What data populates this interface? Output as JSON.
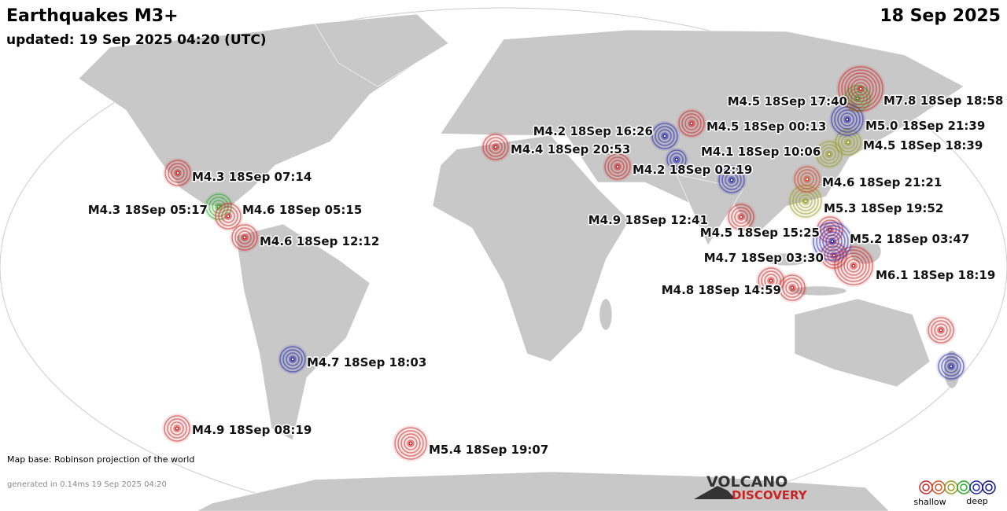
{
  "header": {
    "title": "Earthquakes M3+",
    "date": "18 Sep 2025",
    "updated": "updated: 19 Sep 2025 04:20 (UTC)"
  },
  "quakes": [
    {
      "label": "M4.3 18Sep 07:14",
      "color": "#cc2222"
    },
    {
      "label": "M4.3 18Sep 05:17",
      "color": "#22aa22"
    },
    {
      "label": "M4.6 18Sep 05:15",
      "color": "#cc2222"
    },
    {
      "label": "M4.6 18Sep 12:12",
      "color": "#cc2222"
    },
    {
      "label": "M4.7 18Sep 18:03",
      "color": "#2222aa"
    },
    {
      "label": "M4.9 18Sep 08:19",
      "color": "#cc2222"
    },
    {
      "label": "M5.4 18Sep 19:07",
      "color": "#cc2222"
    },
    {
      "label": "M4.4 18Sep 20:53",
      "color": "#cc2222"
    },
    {
      "label": "M4.2 18Sep 16:26",
      "color": "#2222aa"
    },
    {
      "label": "M4.5 18Sep 00:13",
      "color": "#cc2222"
    },
    {
      "label": "M4.1 18Sep 10:06",
      "color": "#2222aa"
    },
    {
      "label": "M4.2 18Sep 02:19",
      "color": "#cc2222"
    },
    {
      "label": "M4.9 18Sep 12:41",
      "color": "#cc2222"
    },
    {
      "label": "M4.5 18Sep 15:25",
      "color": "#cc2222"
    },
    {
      "label": "M4.7 18Sep 03:30",
      "color": "#cc2222"
    },
    {
      "label": "M4.8 18Sep 14:59",
      "color": "#cc2222"
    },
    {
      "label": "M6.1 18Sep 18:19",
      "color": "#cc2222"
    },
    {
      "label": "M5.2 18Sep 03:47",
      "color": "#2222aa"
    },
    {
      "label": "M5.3 18Sep 19:52",
      "color": "#999922"
    },
    {
      "label": "M4.6 18Sep 21:21",
      "color": "#cc4422"
    },
    {
      "label": "M4.5 18Sep 18:39",
      "color": "#999922"
    },
    {
      "label": "M5.0 18Sep 21:39",
      "color": "#2222aa"
    },
    {
      "label": "M4.5 18Sep 17:40",
      "color": "#22aa22"
    },
    {
      "label": "M7.8 18Sep 18:58",
      "color": "#cc2222"
    }
  ],
  "footer": {
    "map_base": "Map base: Robinson projection of the world",
    "generated": "generated in 0.14ms 19 Sep 2025 04:20"
  },
  "logo": {
    "line1": "VOLCANO",
    "line2": "DISCOVERY"
  },
  "legend": {
    "shallow": "shallow",
    "deep": "deep"
  }
}
